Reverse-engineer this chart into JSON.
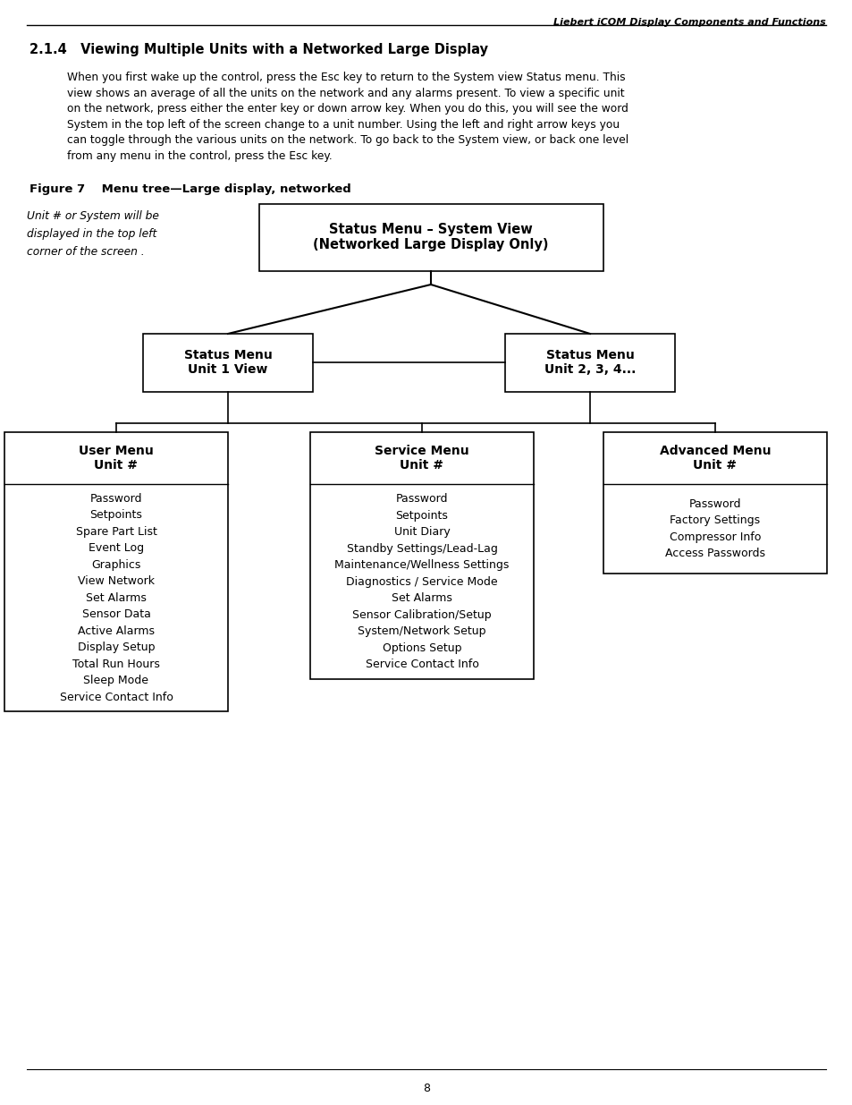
{
  "page_header": "Liebert iCOM Display Components and Functions",
  "section_title": "2.1.4   Viewing Multiple Units with a Networked Large Display",
  "body_line1": "When you first wake up the control, press the Esc key to return to the System view Status menu. This",
  "body_line2": "view shows an average of all the units on the network and any alarms present. To view a specific unit",
  "body_line3": "on the network, press either the enter key or down arrow key. When you do this, you will see the word",
  "body_line4": "System in the top left of the screen change to a unit number. Using the left and right arrow keys you",
  "body_line5": "can toggle through the various units on the network. To go back to the System view, or back one level",
  "body_line6": "from any menu in the control, press the Esc key.",
  "figure_label": "Figure 7    Menu tree—Large display, networked",
  "side_note_line1": "Unit # or System will be",
  "side_note_line2": "displayed in the top left",
  "side_note_line3": "corner of the screen .",
  "top_box_line1": "Status Menu – System View",
  "top_box_line2": "(Networked Large Display Only)",
  "level2_left_line1": "Status Menu",
  "level2_left_line2": "Unit 1 View",
  "level2_right_line1": "Status Menu",
  "level2_right_line2": "Unit 2, 3, 4...",
  "level3_left_header": "User Menu\nUnit #",
  "level3_center_header": "Service Menu\nUnit #",
  "level3_right_header": "Advanced Menu\nUnit #",
  "user_menu_items": "Password\nSetpoints\nSpare Part List\nEvent Log\nGraphics\nView Network\nSet Alarms\nSensor Data\nActive Alarms\nDisplay Setup\nTotal Run Hours\nSleep Mode\nService Contact Info",
  "service_menu_items": "Password\nSetpoints\nUnit Diary\nStandby Settings/Lead-Lag\nMaintenance/Wellness Settings\nDiagnostics / Service Mode\nSet Alarms\nSensor Calibration/Setup\nSystem/Network Setup\nOptions Setup\nService Contact Info",
  "advanced_menu_items": "Password\nFactory Settings\nCompressor Info\nAccess Passwords",
  "page_number": "8",
  "bg_color": "#ffffff"
}
